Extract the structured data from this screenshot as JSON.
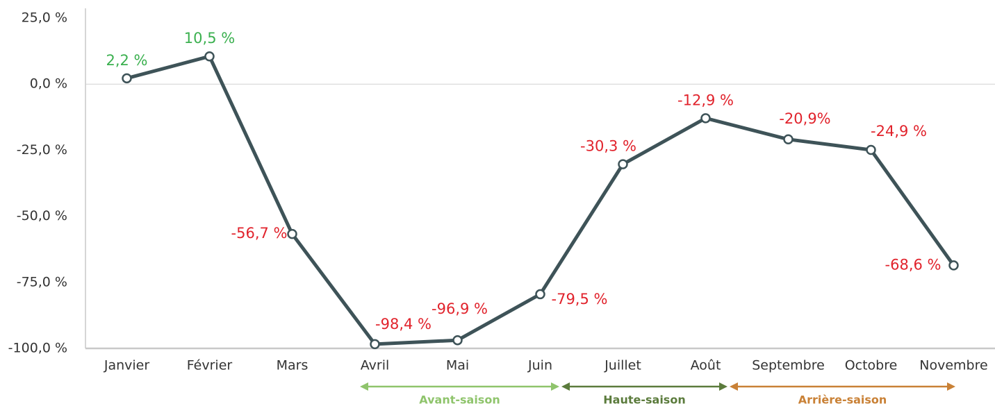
{
  "chart_data": {
    "type": "line",
    "categories": [
      "Janvier",
      "Février",
      "Mars",
      "Avril",
      "Mai",
      "Juin",
      "Juillet",
      "Août",
      "Septembre",
      "Octobre",
      "Novembre"
    ],
    "series": [
      {
        "color": "#3e5358",
        "values": [
          2.2,
          10.5,
          -56.7,
          -98.4,
          -96.9,
          -79.5,
          -30.3,
          -12.9,
          -20.9,
          -24.9,
          -68.6
        ],
        "value_labels": [
          "2,2 %",
          "10,5 %",
          "-56,7 %",
          "-98,4 %",
          "-96,9 %",
          "-79,5 %",
          "-30,3 %",
          "-12,9 %",
          "-20,9%",
          "-24,9 %",
          "-68,6 %"
        ]
      }
    ],
    "positive_color": "#3bb04f",
    "negative_color": "#e1232c",
    "ylim": [
      -100,
      25
    ],
    "yticks": [
      {
        "value": 25,
        "label": "25,0 %"
      },
      {
        "value": 0,
        "label": "0,0 %"
      },
      {
        "value": -25,
        "label": "-25,0 %"
      },
      {
        "value": -50,
        "label": "-50,0 %"
      },
      {
        "value": -75,
        "label": "-75,0 %"
      },
      {
        "value": -100,
        "label": "-100,0 %"
      }
    ],
    "zero_line": true,
    "annotations": [
      {
        "label": "Avant-saison",
        "color": "#8fc46c"
      },
      {
        "label": "Haute-saison",
        "color": "#5b7b3c"
      },
      {
        "label": "Arrière-saison",
        "color": "#c98136"
      }
    ]
  }
}
